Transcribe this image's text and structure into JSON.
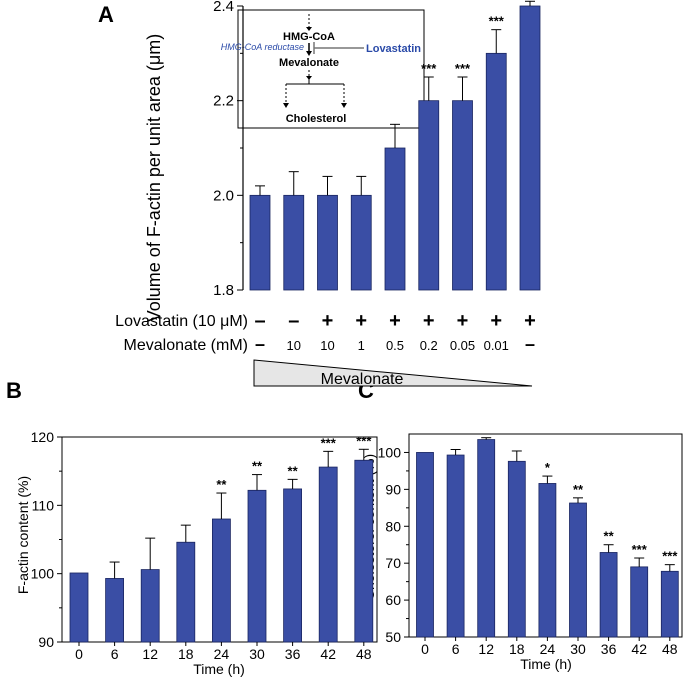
{
  "colors": {
    "bar": "#3a4ea5",
    "bar_stroke": "#1a2560",
    "axis": "#000000",
    "triangle_fill": "#e6e6e6",
    "inset_blue": "#2a4aa8"
  },
  "panels": {
    "a": "A",
    "b": "B",
    "c": "C"
  },
  "chart_data": [
    {
      "id": "A",
      "type": "bar",
      "ylabel": "Volume of F-actin per unit area (μm)",
      "ylim": [
        1.8,
        2.4
      ],
      "yticks": [
        1.8,
        2.0,
        2.2,
        2.4
      ],
      "yticklabels": [
        "1.8",
        "2.0",
        "2.2",
        "2.4"
      ],
      "values": [
        2.0,
        2.0,
        2.0,
        2.0,
        2.1,
        2.2,
        2.2,
        2.3,
        2.4
      ],
      "errors": [
        0.02,
        0.05,
        0.04,
        0.04,
        0.05,
        0.05,
        0.05,
        0.05,
        0.01
      ],
      "stars": [
        "",
        "",
        "",
        "",
        "",
        "***",
        "***",
        "***",
        "***"
      ],
      "conditions": {
        "lovastatin_label": "Lovastatin (10 μM)",
        "lovastatin": [
          "–",
          "–",
          "+",
          "+",
          "+",
          "+",
          "+",
          "+",
          "+"
        ],
        "mevalonate_label": "Mevalonate (mM)",
        "mevalonate": [
          "–",
          "10",
          "10",
          "1",
          "0.5",
          "0.2",
          "0.05",
          "0.01",
          "–"
        ],
        "gradient_label": "Mevalonate"
      },
      "inset": {
        "hmg_coa": "HMG-CoA",
        "enzyme": "HMG-CoA reductase",
        "drug": "Lovastatin",
        "mevalonate": "Mevalonate",
        "cholesterol": "Cholesterol"
      }
    },
    {
      "id": "B",
      "type": "bar",
      "xlabel": "Time (h)",
      "ylabel": "F-actin content (%)",
      "categories": [
        "0",
        "6",
        "12",
        "18",
        "24",
        "30",
        "36",
        "42",
        "48"
      ],
      "ylim": [
        90,
        120
      ],
      "yticks": [
        90,
        100,
        110,
        120
      ],
      "yticklabels": [
        "90",
        "100",
        "110",
        "120"
      ],
      "values": [
        100.1,
        99.3,
        100.6,
        104.6,
        108.0,
        112.2,
        112.4,
        115.6,
        116.6
      ],
      "errors": [
        0.0,
        2.4,
        4.6,
        2.5,
        3.8,
        2.3,
        1.4,
        2.3,
        1.6
      ],
      "stars": [
        "",
        "",
        "",
        "",
        "**",
        "**",
        "**",
        "***",
        "***"
      ]
    },
    {
      "id": "C",
      "type": "bar",
      "xlabel": "Time (h)",
      "ylabel": "Cholesterol content (%)",
      "categories": [
        "0",
        "6",
        "12",
        "18",
        "24",
        "30",
        "36",
        "42",
        "48"
      ],
      "ylim": [
        50,
        105
      ],
      "yticks": [
        50,
        60,
        70,
        80,
        90,
        100
      ],
      "yticklabels": [
        "50",
        "60",
        "70",
        "80",
        "90",
        "100"
      ],
      "values": [
        100.0,
        99.3,
        103.5,
        97.6,
        91.6,
        86.3,
        72.9,
        69.0,
        67.8
      ],
      "errors": [
        0.0,
        1.5,
        0.5,
        2.8,
        2.0,
        1.4,
        2.1,
        2.4,
        1.8
      ],
      "stars": [
        "",
        "",
        "",
        "",
        "*",
        "**",
        "**",
        "***",
        "***"
      ]
    }
  ]
}
